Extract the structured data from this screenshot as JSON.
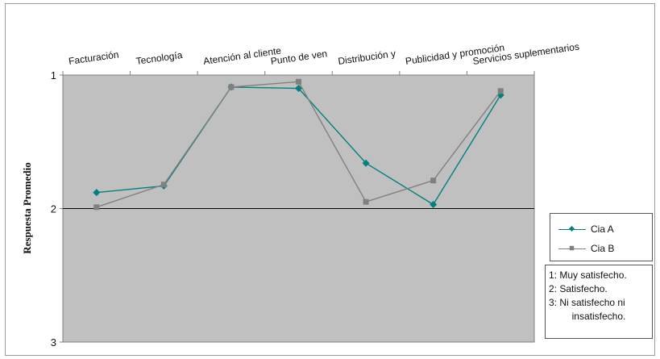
{
  "chart_data": {
    "type": "line",
    "categories": [
      "Facturación",
      "Tecnología",
      "Atención al cliente",
      "Punto de ven",
      "Distribución y",
      "Publicidad y promoción",
      "Servicios suplementarios"
    ],
    "ylabel": "Respuesta Promedio",
    "ylim": [
      1,
      3
    ],
    "y_inverted": true,
    "yticks": [
      "1",
      "2",
      "3"
    ],
    "grid": "major y gridline at 2",
    "plot_background": "#c0c0c0",
    "series": [
      {
        "name": "Cia A",
        "color": "#008080",
        "marker": "diamond",
        "values": [
          1.88,
          1.83,
          1.09,
          1.1,
          1.66,
          1.97,
          1.15
        ]
      },
      {
        "name": "Cia B",
        "color": "#808080",
        "marker": "square",
        "values": [
          1.99,
          1.82,
          1.09,
          1.05,
          1.95,
          1.79,
          1.12
        ]
      }
    ],
    "legend_position": "right",
    "notes": [
      "1: Muy satisfecho.",
      "2: Satisfecho.",
      "3: Ni satisfecho ni",
      "insatisfecho."
    ]
  }
}
